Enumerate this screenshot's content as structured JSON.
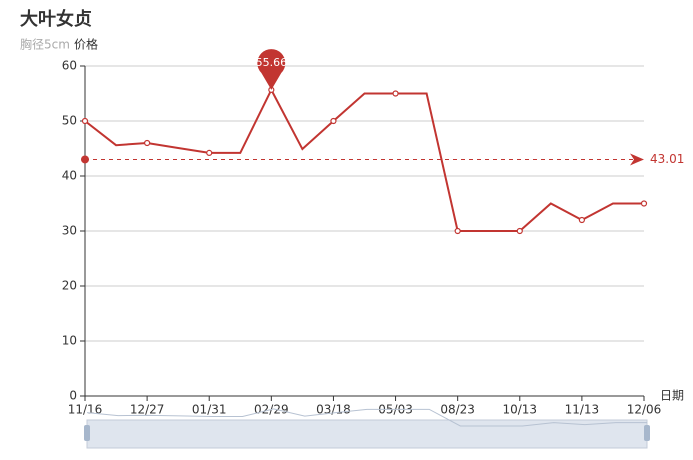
{
  "chart_data": {
    "type": "line",
    "title": "大叶女贞",
    "subtitle": "胸径5cm",
    "x_label": "日期",
    "categories": [
      "11/16",
      null,
      "12/27",
      null,
      "01/31",
      null,
      "02/29",
      null,
      "03/18",
      null,
      "05/03",
      null,
      "08/23",
      null,
      "10/13",
      null,
      "11/13",
      null,
      "12/06"
    ],
    "series": [
      {
        "name": "价格",
        "color": "#c23531",
        "values": [
          50,
          45.6,
          46,
          45.1,
          44.2,
          44.2,
          55.66,
          44.9,
          50,
          55,
          55,
          55,
          30,
          30,
          30,
          35,
          32,
          35,
          35
        ]
      }
    ],
    "mark_line": {
      "value": 43.01
    },
    "ylim": [
      0,
      60
    ],
    "yticks": [
      0,
      10,
      20,
      30,
      40,
      50,
      60
    ],
    "grid": true
  }
}
